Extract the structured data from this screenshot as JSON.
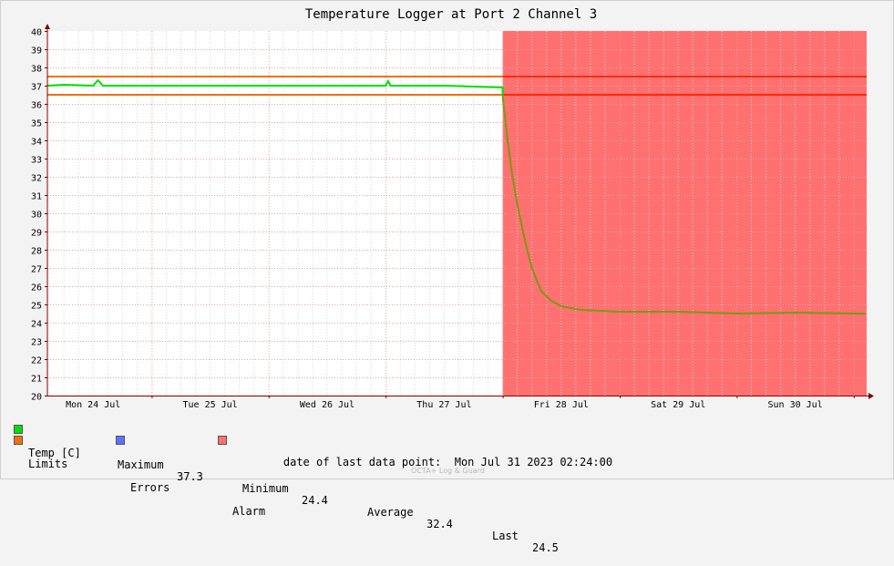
{
  "chart_data": {
    "type": "line",
    "title": "Temperature Logger at Port 2 Channel 3",
    "ylim": [
      20,
      40
    ],
    "yticks": [
      20,
      21,
      22,
      23,
      24,
      25,
      26,
      27,
      28,
      29,
      30,
      31,
      32,
      33,
      34,
      35,
      36,
      37,
      38,
      39,
      40
    ],
    "xlim_days": [
      0,
      7
    ],
    "xtick_labels": [
      "Mon 24 Jul",
      "Tue 25 Jul",
      "Wed 26 Jul",
      "Thu 27 Jul",
      "Fri 28 Jul",
      "Sat 29 Jul",
      "Sun 30 Jul"
    ],
    "grid": true,
    "limits": {
      "upper": 37.5,
      "lower": 36.5
    },
    "alarm_region": {
      "from": "Fri 28 Jul",
      "to": "end"
    },
    "series": [
      {
        "name": "Temp [C]",
        "color": "#00e000",
        "points": [
          [
            "Mon 24 Jul 00:00",
            37.0
          ],
          [
            "Mon 24 Jul 06:00",
            37.05
          ],
          [
            "Mon 24 Jul 12:00",
            37.0
          ],
          [
            "Mon 24 Jul 13:00",
            37.3
          ],
          [
            "Mon 24 Jul 14:00",
            37.0
          ],
          [
            "Tue 25 Jul 00:00",
            37.0
          ],
          [
            "Tue 25 Jul 12:00",
            37.0
          ],
          [
            "Wed 26 Jul 00:00",
            37.0
          ],
          [
            "Wed 26 Jul 12:00",
            37.0
          ],
          [
            "Thu 27 Jul 00:00",
            37.0
          ],
          [
            "Thu 27 Jul 00:30",
            37.25
          ],
          [
            "Thu 27 Jul 01:00",
            37.0
          ],
          [
            "Thu 27 Jul 12:00",
            37.0
          ],
          [
            "Thu 27 Jul 23:59",
            36.9
          ],
          [
            "Fri 28 Jul 00:00",
            36.4
          ],
          [
            "Fri 28 Jul 01:00",
            34.0
          ],
          [
            "Fri 28 Jul 02:00",
            32.0
          ],
          [
            "Fri 28 Jul 03:00",
            30.5
          ],
          [
            "Fri 28 Jul 04:00",
            29.2
          ],
          [
            "Fri 28 Jul 05:00",
            28.0
          ],
          [
            "Fri 28 Jul 06:00",
            27.0
          ],
          [
            "Fri 28 Jul 07:00",
            26.3
          ],
          [
            "Fri 28 Jul 08:00",
            25.7
          ],
          [
            "Fri 28 Jul 10:00",
            25.2
          ],
          [
            "Fri 28 Jul 12:00",
            24.9
          ],
          [
            "Fri 28 Jul 16:00",
            24.7
          ],
          [
            "Sat 29 Jul 00:00",
            24.6
          ],
          [
            "Sat 29 Jul 12:00",
            24.6
          ],
          [
            "Sun 30 Jul 00:00",
            24.5
          ],
          [
            "Sun 30 Jul 12:00",
            24.55
          ],
          [
            "Mon 31 Jul 00:00",
            24.5
          ],
          [
            "Mon 31 Jul 02:24",
            24.5
          ]
        ]
      }
    ]
  },
  "legend": {
    "temp_label": "Temp [C]",
    "max_label": "Maximum",
    "max_value": "37.3",
    "min_label": "Minimum",
    "min_value": "24.4",
    "avg_label": "Average",
    "avg_value": "32.4",
    "last_label": "Last",
    "last_value": "24.5",
    "limits_label": "Limits",
    "errors_label": "Errors",
    "alarm_label": "Alarm"
  },
  "colors": {
    "temp": "#00e000",
    "temp_alarm": "#7a9a10",
    "limits": "#f07010",
    "limits_in_alarm": "#ff2a00",
    "errors": "#6070ff",
    "alarm": "#ff7070",
    "grid_major": "#e8a0a0",
    "grid_minor": "#d8d8d8",
    "axis": "#800000"
  },
  "footer": {
    "last_point_label": "date of last data point:",
    "last_point_value": "Mon Jul 31 2023 02:24:00",
    "credit": "OCTA+ Log & Guard"
  }
}
